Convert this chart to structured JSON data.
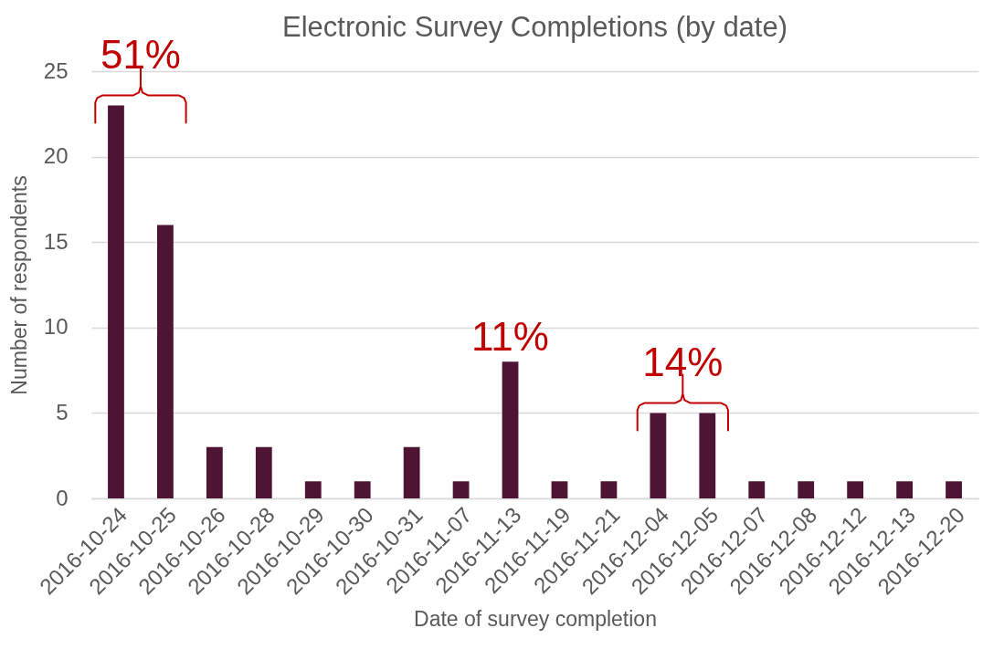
{
  "chart_data": {
    "type": "bar",
    "title": "Electronic Survey Completions (by date)",
    "xlabel": "Date of survey completion",
    "ylabel": "Number of respondents",
    "categories": [
      "2016-10-24",
      "2016-10-25",
      "2016-10-26",
      "2016-10-28",
      "2016-10-29",
      "2016-10-30",
      "2016-10-31",
      "2016-11-07",
      "2016-11-13",
      "2016-11-19",
      "2016-11-21",
      "2016-12-04",
      "2016-12-05",
      "2016-12-07",
      "2016-12-08",
      "2016-12-12",
      "2016-12-13",
      "2016-12-20"
    ],
    "values": [
      23,
      16,
      3,
      3,
      1,
      1,
      3,
      1,
      8,
      1,
      1,
      5,
      5,
      1,
      1,
      1,
      1,
      1
    ],
    "color": "#4d1433",
    "ylim": [
      0,
      25
    ],
    "yticks": [
      0,
      5,
      10,
      15,
      20,
      25
    ],
    "grid": "y",
    "annotations": [
      {
        "text": "51%",
        "x": "2016-10-24",
        "y": 23
      },
      {
        "text": "11%",
        "x": "2016-11-13",
        "y": 8
      },
      {
        "text": "14%",
        "x": "2016-12-04",
        "y": 5
      }
    ]
  }
}
